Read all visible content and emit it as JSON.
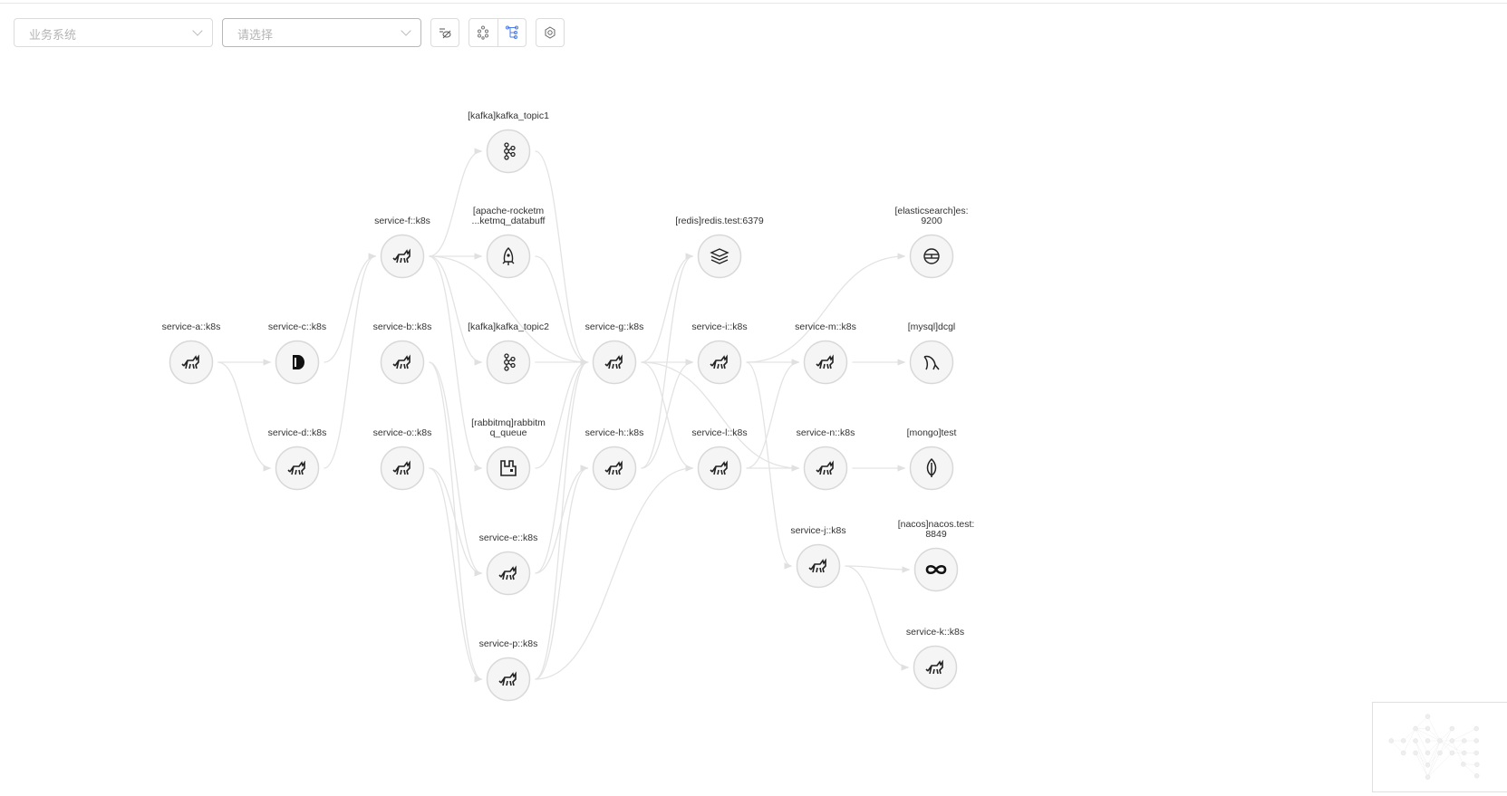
{
  "toolbar": {
    "system_select": {
      "placeholder": "业务系统"
    },
    "filter_select": {
      "placeholder": "请选择"
    },
    "buttons": [
      {
        "name": "hide-filter",
        "icon": "eye-off-filter-icon"
      },
      {
        "name": "layout-force",
        "icon": "scatter-layout-icon"
      },
      {
        "name": "layout-tree",
        "icon": "tree-layout-icon",
        "active": true
      },
      {
        "name": "settings",
        "icon": "gear-icon"
      }
    ],
    "accent": "#4b7bec"
  },
  "graph": {
    "nodes": [
      {
        "id": "a",
        "label": [
          "service-a::k8s"
        ],
        "icon": "tomcat"
      },
      {
        "id": "c",
        "label": [
          "service-c::k8s"
        ],
        "icon": "d-logo"
      },
      {
        "id": "d",
        "label": [
          "service-d::k8s"
        ],
        "icon": "tomcat"
      },
      {
        "id": "f",
        "label": [
          "service-f::k8s"
        ],
        "icon": "tomcat"
      },
      {
        "id": "b",
        "label": [
          "service-b::k8s"
        ],
        "icon": "tomcat"
      },
      {
        "id": "o",
        "label": [
          "service-o::k8s"
        ],
        "icon": "tomcat"
      },
      {
        "id": "kafka1",
        "label": [
          "[kafka]kafka_topic1"
        ],
        "icon": "kafka"
      },
      {
        "id": "rocketmq",
        "label": [
          "[apache-rocketm",
          "...ketmq_databuff"
        ],
        "icon": "rocket"
      },
      {
        "id": "kafka2",
        "label": [
          "[kafka]kafka_topic2"
        ],
        "icon": "kafka"
      },
      {
        "id": "rabbitmq",
        "label": [
          "[rabbitmq]rabbitm",
          "q_queue"
        ],
        "icon": "rabbitmq"
      },
      {
        "id": "e",
        "label": [
          "service-e::k8s"
        ],
        "icon": "tomcat"
      },
      {
        "id": "p",
        "label": [
          "service-p::k8s"
        ],
        "icon": "tomcat"
      },
      {
        "id": "g",
        "label": [
          "service-g::k8s"
        ],
        "icon": "tomcat"
      },
      {
        "id": "h",
        "label": [
          "service-h::k8s"
        ],
        "icon": "tomcat"
      },
      {
        "id": "redis",
        "label": [
          "[redis]redis.test:6379"
        ],
        "icon": "redis"
      },
      {
        "id": "i",
        "label": [
          "service-i::k8s"
        ],
        "icon": "tomcat"
      },
      {
        "id": "l",
        "label": [
          "service-l::k8s"
        ],
        "icon": "tomcat"
      },
      {
        "id": "m",
        "label": [
          "service-m::k8s"
        ],
        "icon": "tomcat"
      },
      {
        "id": "n",
        "label": [
          "service-n::k8s"
        ],
        "icon": "tomcat"
      },
      {
        "id": "j",
        "label": [
          "service-j::k8s"
        ],
        "icon": "tomcat"
      },
      {
        "id": "es",
        "label": [
          "[elasticsearch]es:",
          "9200"
        ],
        "icon": "elasticsearch"
      },
      {
        "id": "mysql",
        "label": [
          "[mysql]dcgl"
        ],
        "icon": "mysql"
      },
      {
        "id": "mongo",
        "label": [
          "[mongo]test"
        ],
        "icon": "mongo"
      },
      {
        "id": "nacos",
        "label": [
          "[nacos]nacos.test:",
          "8849"
        ],
        "icon": "nacos"
      },
      {
        "id": "k",
        "label": [
          "service-k::k8s"
        ],
        "icon": "tomcat"
      }
    ],
    "edges": [
      [
        "a",
        "c"
      ],
      [
        "a",
        "d"
      ],
      [
        "c",
        "f"
      ],
      [
        "d",
        "f"
      ],
      [
        "f",
        "kafka1"
      ],
      [
        "f",
        "rocketmq"
      ],
      [
        "f",
        "kafka2"
      ],
      [
        "f",
        "rabbitmq"
      ],
      [
        "f",
        "g"
      ],
      [
        "b",
        "e"
      ],
      [
        "b",
        "p"
      ],
      [
        "o",
        "e"
      ],
      [
        "o",
        "p"
      ],
      [
        "kafka1",
        "g"
      ],
      [
        "rocketmq",
        "g"
      ],
      [
        "kafka2",
        "g"
      ],
      [
        "rabbitmq",
        "g"
      ],
      [
        "e",
        "g"
      ],
      [
        "p",
        "g"
      ],
      [
        "e",
        "h"
      ],
      [
        "p",
        "h"
      ],
      [
        "p",
        "l"
      ],
      [
        "g",
        "redis"
      ],
      [
        "g",
        "i"
      ],
      [
        "g",
        "l"
      ],
      [
        "g",
        "n"
      ],
      [
        "h",
        "redis"
      ],
      [
        "h",
        "i"
      ],
      [
        "i",
        "es"
      ],
      [
        "i",
        "m"
      ],
      [
        "i",
        "j"
      ],
      [
        "l",
        "m"
      ],
      [
        "l",
        "n"
      ],
      [
        "m",
        "mysql"
      ],
      [
        "n",
        "mongo"
      ],
      [
        "j",
        "nacos"
      ],
      [
        "j",
        "k"
      ]
    ]
  }
}
